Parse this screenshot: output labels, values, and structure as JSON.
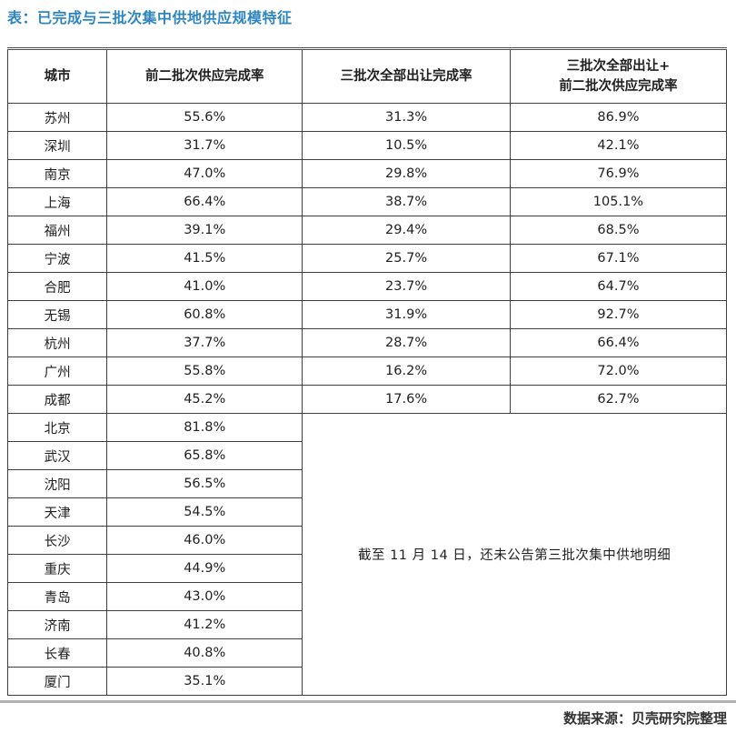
{
  "title": "表：已完成与三批次集中供地供应规模特征",
  "colors": {
    "title_blue": "#2e86c1",
    "grid_line": "#3f3f3f",
    "footer_rule_gray": "#b3b3b3"
  },
  "table": {
    "columns": [
      "城市",
      "前二批次供应完成率",
      "三批次全部出让完成率"
    ],
    "column4": {
      "line1": "三批次全部出让+",
      "line2": "前二批次供应完成率"
    },
    "rows": [
      {
        "city": "苏州",
        "pre_two": "55.6%",
        "third": "31.3%",
        "combined": "86.9%"
      },
      {
        "city": "深圳",
        "pre_two": "31.7%",
        "third": "10.5%",
        "combined": "42.1%"
      },
      {
        "city": "南京",
        "pre_two": "47.0%",
        "third": "29.8%",
        "combined": "76.9%"
      },
      {
        "city": "上海",
        "pre_two": "66.4%",
        "third": "38.7%",
        "combined": "105.1%"
      },
      {
        "city": "福州",
        "pre_two": "39.1%",
        "third": "29.4%",
        "combined": "68.5%"
      },
      {
        "city": "宁波",
        "pre_two": "41.5%",
        "third": "25.7%",
        "combined": "67.1%"
      },
      {
        "city": "合肥",
        "pre_two": "41.0%",
        "third": "23.7%",
        "combined": "64.7%"
      },
      {
        "city": "无锡",
        "pre_two": "60.8%",
        "third": "31.9%",
        "combined": "92.7%"
      },
      {
        "city": "杭州",
        "pre_two": "37.7%",
        "third": "28.7%",
        "combined": "66.4%"
      },
      {
        "city": "广州",
        "pre_two": "55.8%",
        "third": "16.2%",
        "combined": "72.0%"
      },
      {
        "city": "成都",
        "pre_two": "45.2%",
        "third": "17.6%",
        "combined": "62.7%"
      },
      {
        "city": "北京",
        "pre_two": "81.8%",
        "third": null,
        "combined": null
      },
      {
        "city": "武汉",
        "pre_two": "65.8%",
        "third": null,
        "combined": null
      },
      {
        "city": "沈阳",
        "pre_two": "56.5%",
        "third": null,
        "combined": null
      },
      {
        "city": "天津",
        "pre_two": "54.5%",
        "third": null,
        "combined": null
      },
      {
        "city": "长沙",
        "pre_two": "46.0%",
        "third": null,
        "combined": null
      },
      {
        "city": "重庆",
        "pre_two": "44.9%",
        "third": null,
        "combined": null
      },
      {
        "city": "青岛",
        "pre_two": "43.0%",
        "third": null,
        "combined": null
      },
      {
        "city": "济南",
        "pre_two": "41.2%",
        "third": null,
        "combined": null
      },
      {
        "city": "长春",
        "pre_two": "40.8%",
        "third": null,
        "combined": null
      },
      {
        "city": "厦门",
        "pre_two": "35.1%",
        "third": null,
        "combined": null
      }
    ],
    "note": "截至 11 月 14 日，还未公告第三批次集中供地明细"
  },
  "footer": {
    "source": "数据来源：贝壳研究院整理"
  }
}
